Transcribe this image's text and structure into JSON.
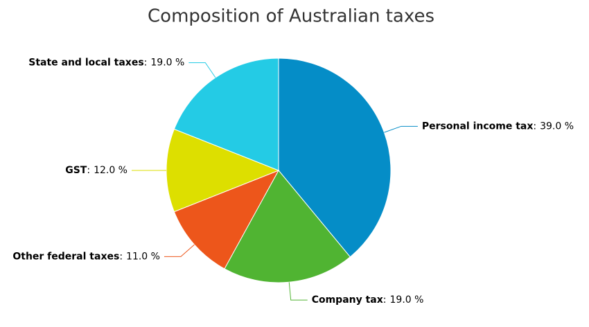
{
  "chart_data": {
    "type": "pie",
    "title": "Composition of Australian taxes",
    "categories": [
      "Personal income tax",
      "Company tax",
      "Other federal taxes",
      "GST",
      "State and local taxes"
    ],
    "values": [
      39,
      19,
      11,
      12,
      19
    ],
    "value_labels": [
      "39.0 %",
      "19.0 %",
      "11.0 %",
      "12.0 %",
      "19.0 %"
    ],
    "label_separator": ":",
    "colors": [
      "#058dc7",
      "#50b432",
      "#ed561b",
      "#dddf00",
      "#24cbe5"
    ]
  }
}
